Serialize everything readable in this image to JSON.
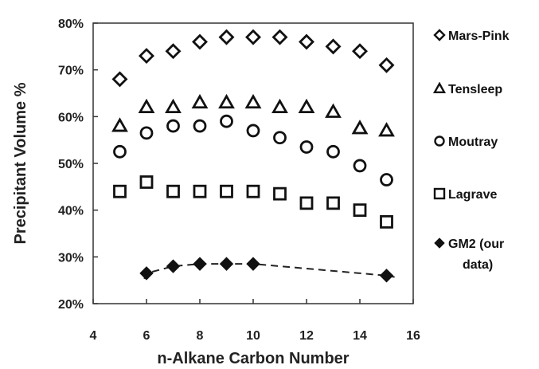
{
  "chart_data": {
    "type": "scatter",
    "title": "",
    "xlabel": "n-Alkane Carbon Number",
    "ylabel": "Precipitant Volume  %",
    "xlim": [
      4,
      16
    ],
    "ylim": [
      20,
      80
    ],
    "xticks": [
      "4",
      "6",
      "8",
      "10",
      "12",
      "14",
      "16"
    ],
    "yticks": [
      "20%",
      "30%",
      "40%",
      "50%",
      "60%",
      "70%",
      "80%"
    ],
    "grid": false,
    "legend_position": "right",
    "series": [
      {
        "name": "Mars-Pink",
        "marker": "diamond-open",
        "x": [
          5,
          6,
          7,
          8,
          9,
          10,
          11,
          12,
          13,
          14,
          15
        ],
        "y": [
          68,
          73,
          74,
          76,
          77,
          77,
          77,
          76,
          75,
          74,
          71
        ]
      },
      {
        "name": "Tensleep",
        "marker": "triangle-open",
        "x": [
          5,
          6,
          7,
          8,
          9,
          10,
          11,
          12,
          13,
          14,
          15
        ],
        "y": [
          58,
          62,
          62,
          63,
          63,
          63,
          62,
          62,
          61,
          57.5,
          57
        ]
      },
      {
        "name": "Moutray",
        "marker": "circle-open",
        "x": [
          5,
          6,
          7,
          8,
          9,
          10,
          11,
          12,
          13,
          14,
          15
        ],
        "y": [
          52.5,
          56.5,
          58,
          58,
          59,
          57,
          55.5,
          53.5,
          52.5,
          49.5,
          46.5
        ]
      },
      {
        "name": "Lagrave",
        "marker": "square-open",
        "x": [
          5,
          6,
          7,
          8,
          9,
          10,
          11,
          12,
          13,
          14,
          15
        ],
        "y": [
          44,
          46,
          44,
          44,
          44,
          44,
          43.5,
          41.5,
          41.5,
          40,
          37.5
        ]
      },
      {
        "name": "GM2 (our data)",
        "legend_lines": [
          "GM2 (our",
          "data)"
        ],
        "marker": "diamond-filled",
        "line": "dashed",
        "x": [
          6,
          7,
          8,
          9,
          10,
          15
        ],
        "y": [
          26.5,
          28,
          28.5,
          28.5,
          28.5,
          26
        ]
      }
    ]
  }
}
